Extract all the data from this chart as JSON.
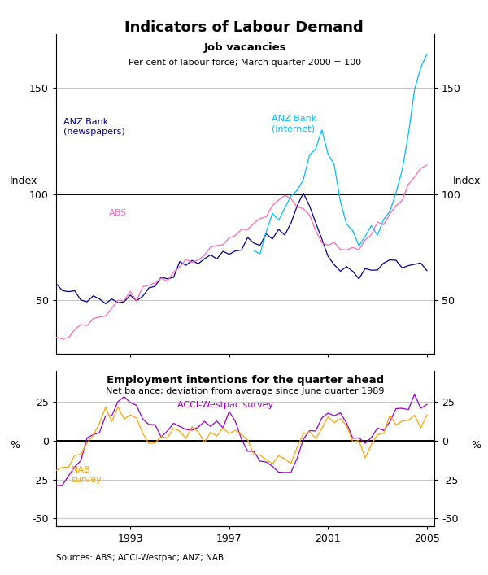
{
  "title": "Indicators of Labour Demand",
  "panel1_title": "Job vacancies",
  "panel1_subtitle": "Per cent of labour force; March quarter 2000 = 100",
  "panel1_ylabel_left": "Index",
  "panel1_ylabel_right": "Index",
  "panel2_title": "Employment intentions for the quarter ahead",
  "panel2_subtitle": "Net balance; deviation from average since June quarter 1989",
  "panel2_ylabel_left": "%",
  "panel2_ylabel_right": "%",
  "source": "Sources: ABS; ACCI-Westpac; ANZ; NAB",
  "panel1_ylim": [
    25,
    175
  ],
  "panel1_yticks": [
    50,
    100,
    150
  ],
  "panel2_ylim": [
    -55,
    45
  ],
  "panel2_yticks": [
    -50,
    -25,
    0,
    25
  ],
  "x_tick_years": [
    1993,
    1997,
    2001,
    2005
  ],
  "anz_newspapers_color": "#00008B",
  "abs_color": "#FF69B4",
  "anz_internet_color": "#00BFFF",
  "acci_westpac_color": "#9900CC",
  "nab_color": "#FFA500",
  "hline_color": "#000000",
  "grid_color": "#C8C8C8"
}
